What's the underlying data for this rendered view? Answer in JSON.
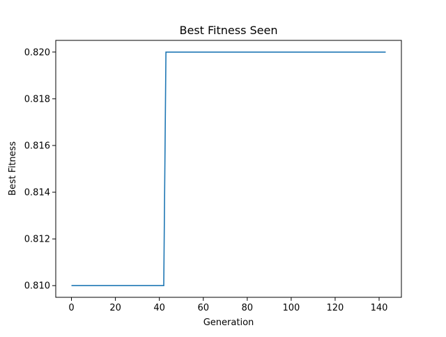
{
  "chart_data": {
    "type": "line",
    "title": "Best Fitness Seen",
    "xlabel": "Generation",
    "ylabel": "Best Fitness",
    "xlim": [
      -7.15,
      150.15
    ],
    "ylim": [
      0.8095,
      0.8205
    ],
    "x_ticks": [
      0,
      20,
      40,
      60,
      80,
      100,
      120,
      140
    ],
    "x_tick_labels": [
      "0",
      "20",
      "40",
      "60",
      "80",
      "100",
      "120",
      "140"
    ],
    "y_ticks": [
      0.81,
      0.812,
      0.814,
      0.816,
      0.818,
      0.82
    ],
    "y_tick_labels": [
      "0.810",
      "0.812",
      "0.814",
      "0.816",
      "0.818",
      "0.820"
    ],
    "grid": false,
    "legend": "none",
    "series": [
      {
        "color": "#1f77b4",
        "x": [
          0,
          42,
          43,
          143
        ],
        "y": [
          0.81,
          0.81,
          0.82,
          0.82
        ]
      }
    ]
  }
}
